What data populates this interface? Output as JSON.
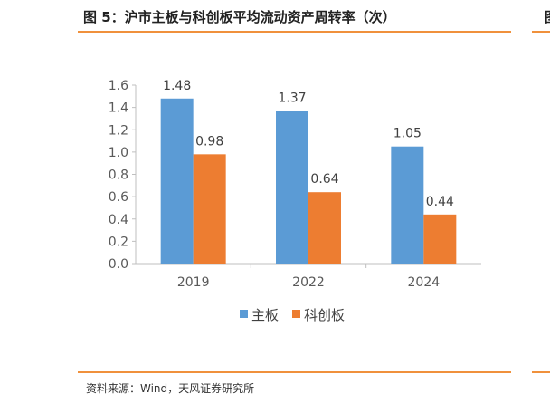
{
  "figure": {
    "title": "图 5：沪市主板与科创板平均流动资产周转率（次）",
    "next_title_fragment": "图",
    "source": "资料来源：Wind，天风证券研究所"
  },
  "chart_data": {
    "type": "bar",
    "title": "沪市主板与科创板平均流动资产周转率（次）",
    "categories": [
      "2019",
      "2022",
      "2024"
    ],
    "series": [
      {
        "name": "主板",
        "color": "#5b9bd5",
        "values": [
          1.48,
          1.37,
          1.05
        ]
      },
      {
        "name": "科创板",
        "color": "#ed7d31",
        "values": [
          0.98,
          0.64,
          0.44
        ]
      }
    ],
    "ylim": [
      0,
      1.6
    ],
    "yticks": [
      "0.0",
      "0.2",
      "0.4",
      "0.6",
      "0.8",
      "1.0",
      "1.2",
      "1.4",
      "1.6"
    ],
    "xlabel": "",
    "ylabel": "",
    "grid": false,
    "legend": "bottom"
  }
}
